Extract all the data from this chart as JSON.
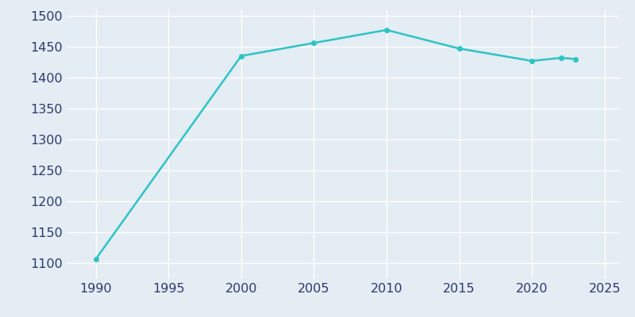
{
  "years": [
    1990,
    2000,
    2005,
    2010,
    2015,
    2020,
    2022,
    2023
  ],
  "population": [
    1107,
    1435,
    1456,
    1477,
    1447,
    1427,
    1432,
    1430
  ],
  "line_color": "#2EC4C4",
  "marker_color": "#2EC4C4",
  "background_color": "#E4ECF4",
  "grid_color": "#FFFFFF",
  "text_color": "#2B3A6E",
  "xlim": [
    1988,
    2026
  ],
  "ylim": [
    1075,
    1510
  ],
  "xticks": [
    1990,
    1995,
    2000,
    2005,
    2010,
    2015,
    2020,
    2025
  ],
  "yticks": [
    1100,
    1150,
    1200,
    1250,
    1300,
    1350,
    1400,
    1450,
    1500
  ],
  "linewidth": 1.8,
  "markersize": 4,
  "tick_fontsize": 11.5
}
